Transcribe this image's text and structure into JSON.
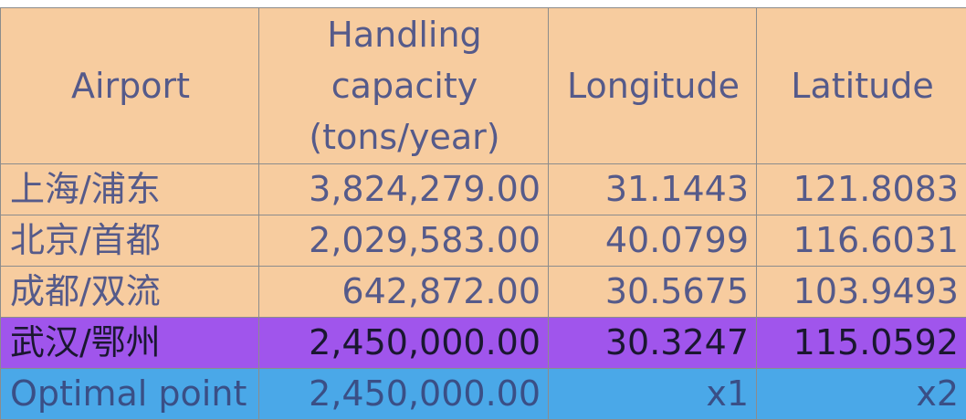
{
  "header": {
    "airport": "Airport",
    "capacity_line1": "Handling",
    "capacity_line2": "capacity",
    "capacity_line3": "(tons/year)",
    "longitude": "Longitude",
    "latitude": "Latitude"
  },
  "rows": [
    {
      "airport": "上海/浦东",
      "capacity": "3,824,279.00",
      "longitude": "31.1443",
      "latitude": "121.8083",
      "style": "orange"
    },
    {
      "airport": "北京/首都",
      "capacity": "2,029,583.00",
      "longitude": "40.0799",
      "latitude": "116.6031",
      "style": "orange"
    },
    {
      "airport": "成都/双流",
      "capacity": "642,872.00",
      "longitude": "30.5675",
      "latitude": "103.9493",
      "style": "orange"
    },
    {
      "airport": "武汉/鄂州",
      "capacity": "2,450,000.00",
      "longitude": "30.3247",
      "latitude": "115.0592",
      "style": "purple"
    },
    {
      "airport": "Optimal point",
      "capacity": "2,450,000.00",
      "longitude": "x1",
      "latitude": "x2",
      "style": "blue"
    }
  ],
  "colors": {
    "header_bg": "#f7cc9f",
    "orange_row": "#f7cc9f",
    "purple_row": "#a055ec",
    "blue_row": "#4aa8e8",
    "text": "#555a8a",
    "grid": "#8c8c8c"
  }
}
